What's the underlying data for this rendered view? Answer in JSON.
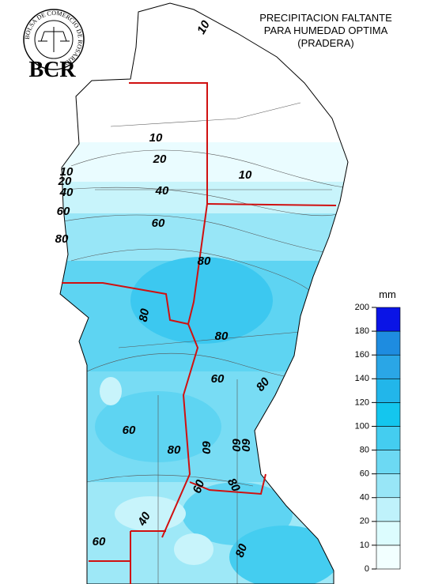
{
  "logo": {
    "ring_text": "BOLSA DE COMERCIO DE ROSARIO",
    "initials": "BCR"
  },
  "title": [
    "PRECIPITACION FALTANTE",
    "PARA HUMEDAD OPTIMA",
    "(PRADERA)"
  ],
  "legend": {
    "unit": "mm",
    "levels": [
      0,
      10,
      20,
      40,
      60,
      80,
      100,
      120,
      140,
      160,
      180,
      200
    ],
    "colors": [
      "#f2ffff",
      "#dcfcfe",
      "#bff2fb",
      "#98e6f7",
      "#6cd9f3",
      "#44cdf0",
      "#14c6ee",
      "#22b6ea",
      "#2aa6e6",
      "#1e8ce0",
      "#0a14e6"
    ]
  },
  "contour_labels": [
    "10",
    "10",
    "20",
    "10",
    "10",
    "20",
    "40",
    "40",
    "60",
    "60",
    "80",
    "80",
    "80",
    "80",
    "60",
    "80",
    "60",
    "80",
    "60",
    "60",
    "60",
    "80",
    "40",
    "60",
    "60",
    "80"
  ]
}
